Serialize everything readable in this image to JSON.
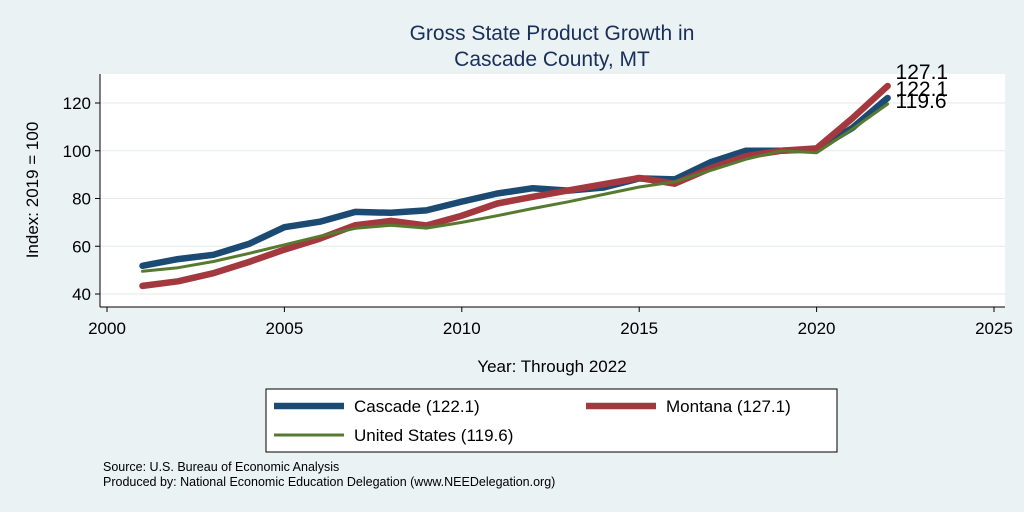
{
  "chart_data": {
    "type": "line",
    "title": [
      "Gross State Product Growth in",
      "Cascade County, MT"
    ],
    "xlabel": "Year: Through 2022",
    "ylabel": "Index: 2019 = 100",
    "xlim": [
      2000,
      2025
    ],
    "ylim": [
      36,
      132
    ],
    "xticks": [
      2000,
      2005,
      2010,
      2015,
      2020,
      2025
    ],
    "yticks": [
      40,
      60,
      80,
      100,
      120
    ],
    "x": [
      2001,
      2002,
      2003,
      2004,
      2005,
      2006,
      2007,
      2008,
      2009,
      2010,
      2011,
      2012,
      2013,
      2014,
      2015,
      2016,
      2017,
      2018,
      2019,
      2020,
      2021,
      2022
    ],
    "series": [
      {
        "name": "Cascade",
        "color": "#1b4a73",
        "width": 6.5,
        "end_label": "122.1",
        "legend_label": "Cascade  (122.1)",
        "values": [
          51.8,
          54.6,
          56.4,
          61.0,
          68.0,
          70.3,
          74.4,
          74.0,
          75.0,
          78.7,
          82.1,
          84.3,
          83.3,
          84.6,
          88.4,
          88.0,
          95.1,
          100.0,
          100.0,
          100.6,
          109.5,
          122.1
        ]
      },
      {
        "name": "Montana",
        "color": "#a3393f",
        "width": 6.5,
        "end_label": "127.1",
        "legend_label": "Montana (127.1)",
        "values": [
          43.4,
          45.3,
          48.7,
          53.4,
          58.6,
          63.2,
          68.8,
          70.6,
          68.7,
          72.8,
          77.9,
          80.7,
          83.4,
          86.0,
          88.6,
          86.2,
          92.6,
          97.7,
          100.0,
          101.0,
          113.5,
          127.1
        ]
      },
      {
        "name": "United States",
        "color": "#567b30",
        "width": 3,
        "end_label": "119.6",
        "legend_label": "United States (119.6)",
        "values": [
          49.5,
          51.0,
          53.6,
          57.0,
          60.6,
          64.2,
          67.5,
          68.8,
          67.6,
          70.0,
          72.8,
          75.8,
          78.6,
          81.7,
          84.8,
          87.0,
          91.7,
          96.4,
          100.0,
          99.2,
          109.0,
          119.6
        ]
      }
    ],
    "grid": true,
    "legend_position": "bottom"
  },
  "notes": {
    "source": "Source: U.S. Bureau of Economic Analysis",
    "produced": "Produced by: National Economic Education Delegation (www.NEEDelegation.org)"
  }
}
